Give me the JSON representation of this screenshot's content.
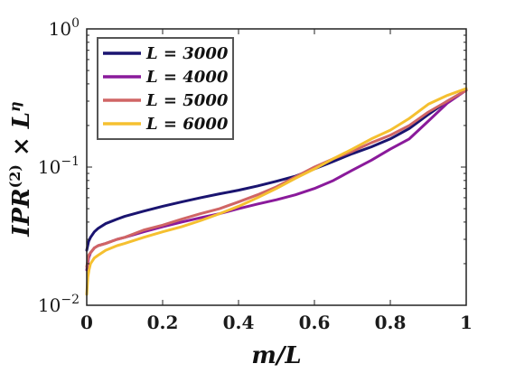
{
  "chart_data": {
    "type": "line",
    "xlabel": "m/L",
    "ylabel": "IPR(2) × L^η",
    "ylabel_parts": {
      "base": "IPR",
      "sup": "(2)",
      "times": "×",
      "L": "L",
      "eta": "η"
    },
    "xlim": [
      0,
      1
    ],
    "ylim": [
      0.01,
      1
    ],
    "yscale": "log",
    "grid": false,
    "legend_placement": "top-left",
    "x_ticks": [
      {
        "value": 0,
        "label": "0"
      },
      {
        "value": 0.2,
        "label": "0.2"
      },
      {
        "value": 0.4,
        "label": "0.4"
      },
      {
        "value": 0.6,
        "label": "0.6"
      },
      {
        "value": 0.8,
        "label": "0.8"
      },
      {
        "value": 1,
        "label": "1"
      }
    ],
    "y_ticks": [
      {
        "value": 0.01,
        "base": "10",
        "exp": "−2"
      },
      {
        "value": 0.1,
        "base": "10",
        "exp": "−1"
      },
      {
        "value": 1,
        "base": "10",
        "exp": "0"
      }
    ],
    "series": [
      {
        "name": "L = 3000",
        "color": "#1a1470",
        "x": [
          0,
          0.005,
          0.01,
          0.02,
          0.03,
          0.05,
          0.08,
          0.1,
          0.15,
          0.2,
          0.25,
          0.3,
          0.35,
          0.4,
          0.45,
          0.5,
          0.55,
          0.6,
          0.65,
          0.7,
          0.75,
          0.8,
          0.85,
          0.9,
          0.95,
          1.0
        ],
        "y": [
          0.025,
          0.029,
          0.031,
          0.034,
          0.036,
          0.039,
          0.042,
          0.044,
          0.048,
          0.052,
          0.056,
          0.06,
          0.064,
          0.068,
          0.073,
          0.079,
          0.086,
          0.097,
          0.11,
          0.125,
          0.14,
          0.16,
          0.19,
          0.24,
          0.3,
          0.36
        ]
      },
      {
        "name": "L = 4000",
        "color": "#8a1a9b",
        "x": [
          0,
          0.005,
          0.01,
          0.02,
          0.03,
          0.05,
          0.08,
          0.1,
          0.15,
          0.2,
          0.25,
          0.3,
          0.35,
          0.4,
          0.45,
          0.5,
          0.55,
          0.6,
          0.65,
          0.7,
          0.75,
          0.8,
          0.85,
          0.9,
          0.95,
          1.0
        ],
        "y": [
          0.018,
          0.022,
          0.024,
          0.026,
          0.027,
          0.028,
          0.03,
          0.031,
          0.034,
          0.037,
          0.04,
          0.043,
          0.046,
          0.05,
          0.054,
          0.058,
          0.063,
          0.07,
          0.08,
          0.095,
          0.112,
          0.135,
          0.16,
          0.215,
          0.29,
          0.36
        ]
      },
      {
        "name": "L = 5000",
        "color": "#d06565",
        "x": [
          0,
          0.005,
          0.01,
          0.02,
          0.03,
          0.05,
          0.08,
          0.1,
          0.15,
          0.2,
          0.25,
          0.3,
          0.35,
          0.4,
          0.45,
          0.5,
          0.55,
          0.6,
          0.65,
          0.7,
          0.75,
          0.8,
          0.85,
          0.9,
          0.95,
          1.0
        ],
        "y": [
          0.019,
          0.023,
          0.024,
          0.026,
          0.027,
          0.028,
          0.03,
          0.031,
          0.035,
          0.038,
          0.042,
          0.046,
          0.05,
          0.056,
          0.063,
          0.072,
          0.085,
          0.1,
          0.115,
          0.13,
          0.15,
          0.17,
          0.2,
          0.25,
          0.3,
          0.36
        ]
      },
      {
        "name": "L = 6000",
        "color": "#f5c030",
        "x": [
          0,
          0.003,
          0.006,
          0.01,
          0.02,
          0.03,
          0.05,
          0.08,
          0.1,
          0.15,
          0.2,
          0.25,
          0.3,
          0.35,
          0.4,
          0.45,
          0.5,
          0.55,
          0.6,
          0.65,
          0.7,
          0.75,
          0.8,
          0.85,
          0.9,
          0.95,
          1.0
        ],
        "y": [
          0.012,
          0.016,
          0.018,
          0.02,
          0.022,
          0.023,
          0.025,
          0.027,
          0.028,
          0.031,
          0.034,
          0.037,
          0.041,
          0.046,
          0.052,
          0.06,
          0.07,
          0.083,
          0.097,
          0.115,
          0.135,
          0.16,
          0.185,
          0.225,
          0.285,
          0.33,
          0.37
        ]
      }
    ]
  }
}
